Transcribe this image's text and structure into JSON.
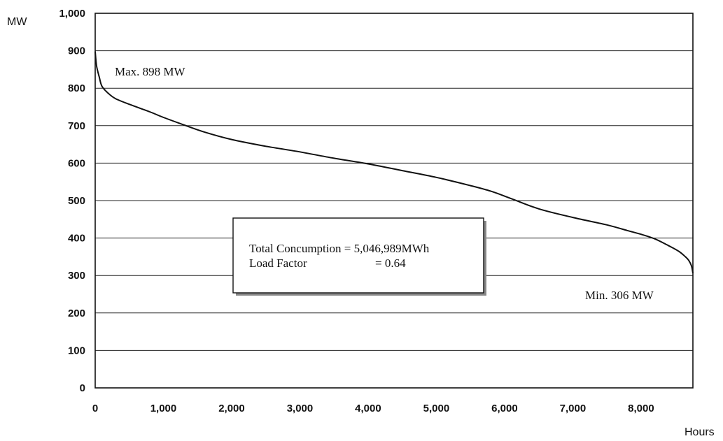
{
  "chart_data": {
    "type": "line",
    "title": "",
    "ylabel": "MW",
    "xlabel": "Hours",
    "xlim": [
      0,
      8760
    ],
    "ylim": [
      0,
      1000
    ],
    "grid": true,
    "x_ticks": [
      0,
      1000,
      2000,
      3000,
      4000,
      5000,
      6000,
      7000,
      8000
    ],
    "x_tick_labels": [
      "0",
      "1,000",
      "2,000",
      "3,000",
      "4,000",
      "5,000",
      "6,000",
      "7,000",
      "8,000"
    ],
    "y_ticks": [
      0,
      100,
      200,
      300,
      400,
      500,
      600,
      700,
      800,
      900,
      1000
    ],
    "y_tick_labels": [
      "0",
      "100",
      "200",
      "300",
      "400",
      "500",
      "600",
      "700",
      "800",
      "900",
      "1,000"
    ],
    "series": [
      {
        "x": [
          0,
          20,
          60,
          100,
          200,
          300,
          500,
          800,
          1000,
          1300,
          1600,
          2000,
          2500,
          3000,
          3500,
          4000,
          4500,
          5000,
          5500,
          5800,
          6100,
          6500,
          7000,
          7500,
          7800,
          8000,
          8200,
          8400,
          8550,
          8650,
          8700,
          8740,
          8760
        ],
        "y": [
          898,
          860,
          830,
          805,
          785,
          772,
          757,
          737,
          722,
          702,
          683,
          663,
          645,
          630,
          613,
          598,
          580,
          562,
          540,
          525,
          505,
          478,
          455,
          435,
          420,
          410,
          398,
          380,
          365,
          350,
          340,
          325,
          306
        ]
      }
    ],
    "annotations": {
      "max": "Max.  898 MW",
      "min": "Min.  306 MW",
      "box_line1": "Total Concumption = 5,046,989MWh",
      "box_line2_label": "Load Factor",
      "box_line2_value": "= 0.64"
    }
  }
}
